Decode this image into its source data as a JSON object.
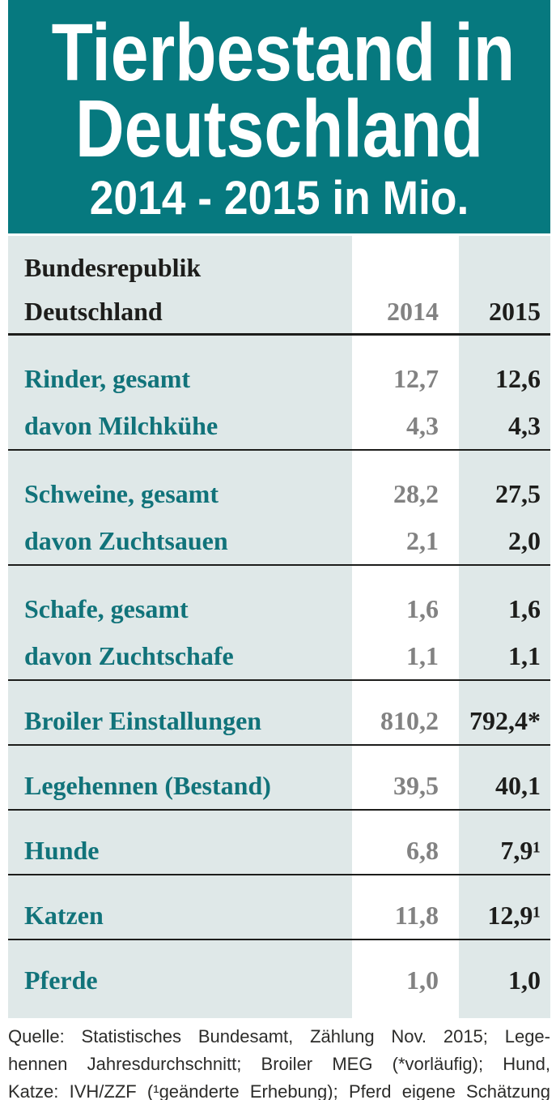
{
  "header": {
    "title_line1": "Tierbestand in",
    "title_line2": "Deutschland",
    "subtitle": "2014 - 2015 in Mio."
  },
  "table": {
    "region_line1": "Bundesrepublik",
    "region_line2": "Deutschland",
    "col_2014": "2014",
    "col_2015": "2015",
    "groups": [
      {
        "rows": [
          {
            "label": "Rinder, gesamt",
            "v2014": "12,7",
            "v2015": "12,6"
          },
          {
            "label": "davon Milchkühe",
            "v2014": "4,3",
            "v2015": "4,3"
          }
        ],
        "rule": true
      },
      {
        "rows": [
          {
            "label": "Schweine, gesamt",
            "v2014": "28,2",
            "v2015": "27,5"
          },
          {
            "label": "davon Zuchtsauen",
            "v2014": "2,1",
            "v2015": "2,0"
          }
        ],
        "rule": true
      },
      {
        "rows": [
          {
            "label": "Schafe, gesamt",
            "v2014": "1,6",
            "v2015": "1,6"
          },
          {
            "label": "davon Zuchtschafe",
            "v2014": "1,1",
            "v2015": "1,1"
          }
        ],
        "rule": true
      },
      {
        "rows": [
          {
            "label": "Broiler Einstallungen",
            "v2014": "810,2",
            "v2015": "792,4*"
          }
        ],
        "rule": true
      },
      {
        "rows": [
          {
            "label": "Legehennen (Bestand)",
            "v2014": "39,5",
            "v2015": "40,1"
          }
        ],
        "rule": true
      },
      {
        "rows": [
          {
            "label": "Hunde",
            "v2014": "6,8",
            "v2015": "7,9¹"
          }
        ],
        "rule": true
      },
      {
        "rows": [
          {
            "label": "Katzen",
            "v2014": "11,8",
            "v2015": "12,9¹"
          }
        ],
        "rule": true
      },
      {
        "rows": [
          {
            "label": "Pferde",
            "v2014": "1,0",
            "v2015": "1,0"
          }
        ],
        "rule": false
      }
    ]
  },
  "footer": {
    "lines": [
      "Quelle: Statistisches Bundesamt, Zählung Nov. 2015; Lege-",
      "hennen Jahresdurchschnitt; Broiler MEG (*vorläufig); Hund,",
      "Katze: IVH/ZZF (¹geänderte Erhebung); Pferd eigene Schätzung"
    ]
  },
  "colors": {
    "masthead_teal": "#06797f",
    "table_background": "#dfe8e8",
    "column_2014_highlight": "#ffffff",
    "label_teal": "#11737a",
    "value_2014_gray": "#828282",
    "value_2015_black": "#1d1d1b",
    "title_white": "#ffffff"
  },
  "chart_data": {
    "type": "table",
    "title": "Tierbestand in Deutschland",
    "subtitle": "2014 - 2015 in Mio.",
    "unit": "Mio.",
    "columns": [
      "Bundesrepublik Deutschland",
      "2014",
      "2015"
    ],
    "rows": [
      [
        "Rinder, gesamt",
        12.7,
        12.6
      ],
      [
        "davon Milchkühe",
        4.3,
        4.3
      ],
      [
        "Schweine, gesamt",
        28.2,
        27.5
      ],
      [
        "davon Zuchtsauen",
        2.1,
        2.0
      ],
      [
        "Schafe, gesamt",
        1.6,
        1.6
      ],
      [
        "davon Zuchtschafe",
        1.1,
        1.1
      ],
      [
        "Broiler Einstallungen",
        810.2,
        792.4
      ],
      [
        "Legehennen (Bestand)",
        39.5,
        40.1
      ],
      [
        "Hunde",
        6.8,
        7.9
      ],
      [
        "Katzen",
        11.8,
        12.9
      ],
      [
        "Pferde",
        1.0,
        1.0
      ]
    ],
    "footnotes": {
      "*": "vorläufig",
      "¹": "geänderte Erhebung"
    },
    "source": "Quelle: Statistisches Bundesamt, Zählung Nov. 2015; Legehennen Jahresdurchschnitt; Broiler MEG (*vorläufig); Hund, Katze: IVH/ZZF (¹geänderte Erhebung); Pferd eigene Schätzung"
  }
}
